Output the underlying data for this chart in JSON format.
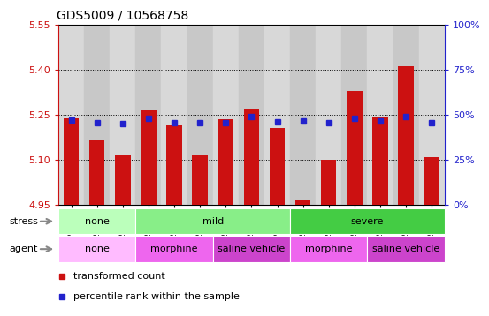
{
  "title": "GDS5009 / 10568758",
  "samples": [
    "GSM1217777",
    "GSM1217782",
    "GSM1217785",
    "GSM1217776",
    "GSM1217781",
    "GSM1217784",
    "GSM1217787",
    "GSM1217788",
    "GSM1217790",
    "GSM1217778",
    "GSM1217786",
    "GSM1217789",
    "GSM1217779",
    "GSM1217780",
    "GSM1217783"
  ],
  "bar_values": [
    5.237,
    5.165,
    5.115,
    5.265,
    5.215,
    5.115,
    5.235,
    5.27,
    5.205,
    4.965,
    5.1,
    5.33,
    5.245,
    5.41,
    5.11
  ],
  "percentile_values": [
    5.233,
    5.222,
    5.22,
    5.238,
    5.223,
    5.222,
    5.224,
    5.244,
    5.226,
    5.228,
    5.222,
    5.238,
    5.228,
    5.244,
    5.224
  ],
  "ylim_left": [
    4.95,
    5.55
  ],
  "ylim_right": [
    0,
    100
  ],
  "yticks_left": [
    4.95,
    5.1,
    5.25,
    5.4,
    5.55
  ],
  "yticks_right": [
    0,
    25,
    50,
    75,
    100
  ],
  "bar_color": "#cc1111",
  "bar_base": 4.95,
  "blue_color": "#2222cc",
  "stress_groups": [
    {
      "label": "none",
      "start": 0,
      "end": 3,
      "color": "#bbffbb"
    },
    {
      "label": "mild",
      "start": 3,
      "end": 9,
      "color": "#88ee88"
    },
    {
      "label": "severe",
      "start": 9,
      "end": 15,
      "color": "#44cc44"
    }
  ],
  "agent_groups": [
    {
      "label": "none",
      "start": 0,
      "end": 3,
      "color": "#ffbbff"
    },
    {
      "label": "morphine",
      "start": 3,
      "end": 6,
      "color": "#ee66ee"
    },
    {
      "label": "saline vehicle",
      "start": 6,
      "end": 9,
      "color": "#cc44cc"
    },
    {
      "label": "morphine",
      "start": 9,
      "end": 12,
      "color": "#ee66ee"
    },
    {
      "label": "saline vehicle",
      "start": 12,
      "end": 15,
      "color": "#cc44cc"
    }
  ],
  "col_bg_even": "#d8d8d8",
  "col_bg_odd": "#c8c8c8",
  "legend_red_label": "transformed count",
  "legend_blue_label": "percentile rank within the sample"
}
